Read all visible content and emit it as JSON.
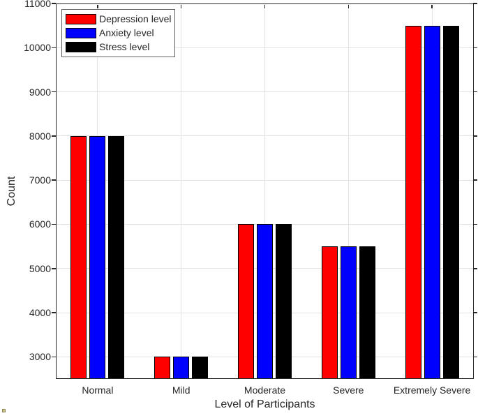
{
  "chart_data": {
    "type": "bar",
    "title": "",
    "xlabel": "Level of Participants",
    "ylabel": "Count",
    "categories": [
      "Normal",
      "Mild",
      "Moderate",
      "Severe",
      "Extremely Severe"
    ],
    "series": [
      {
        "name": "Depression level",
        "color": "#ff0000",
        "values": [
          8000,
          3000,
          6000,
          5500,
          10500
        ]
      },
      {
        "name": "Anxiety level",
        "color": "#0000ff",
        "values": [
          8000,
          3000,
          6000,
          5500,
          10500
        ]
      },
      {
        "name": "Stress level",
        "color": "#000000",
        "values": [
          8000,
          3000,
          6000,
          5500,
          10500
        ]
      }
    ],
    "ylim": [
      2500,
      11000
    ],
    "yticks": [
      3000,
      4000,
      5000,
      6000,
      7000,
      8000,
      9000,
      10000,
      11000
    ],
    "grid": true,
    "legend_position": "top-left",
    "bar_edge_color": "#000000",
    "axis_color": "#262626",
    "grid_color": "#e2e2e2"
  }
}
